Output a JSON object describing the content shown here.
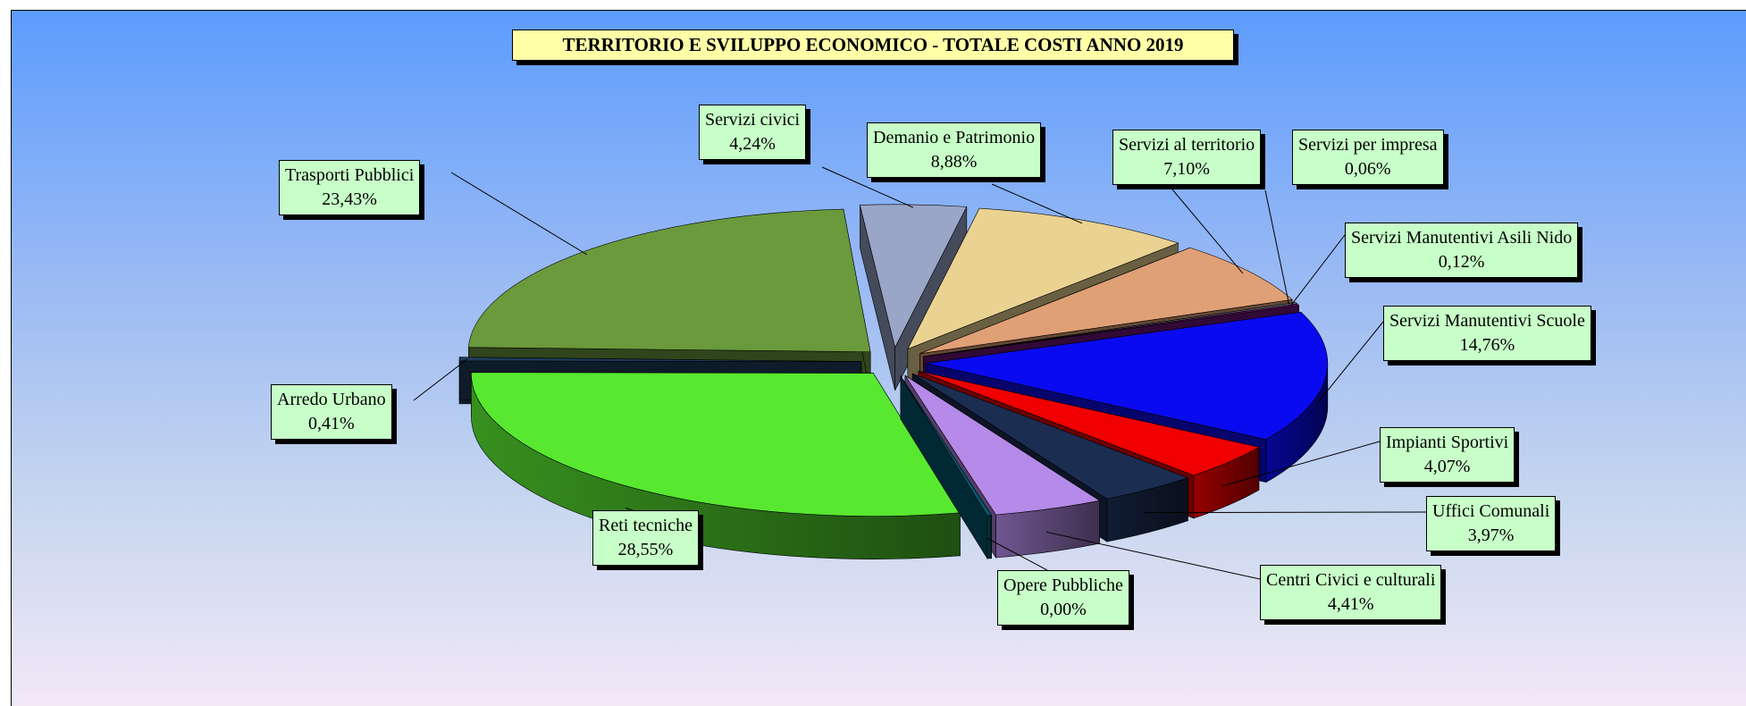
{
  "chart_data": {
    "type": "pie",
    "title": "TERRITORIO  E  SVILUPPO  ECONOMICO  -  TOTALE  COSTI  ANNO  2019",
    "slices": [
      {
        "label": "Servizi civici",
        "value": 4.24,
        "display": "4,24%",
        "color": "#9aa6c8"
      },
      {
        "label": "Demanio e Patrimonio",
        "value": 8.88,
        "display": "8,88%",
        "color": "#ead292"
      },
      {
        "label": "Servizi al territorio",
        "value": 7.1,
        "display": "7,10%",
        "color": "#e0a076"
      },
      {
        "label": "Servizi per impresa",
        "value": 0.06,
        "display": "0,06%",
        "color": "#6a6a7a"
      },
      {
        "label": "Servizi Manutentivi Asili Nido",
        "value": 0.12,
        "display": "0,12%",
        "color": "#6d1477"
      },
      {
        "label": "Servizi Manutentivi Scuole",
        "value": 14.76,
        "display": "14,76%",
        "color": "#0a0af0"
      },
      {
        "label": "Impianti Sportivi",
        "value": 4.07,
        "display": "4,07%",
        "color": "#f00000"
      },
      {
        "label": "Uffici Comunali",
        "value": 3.97,
        "display": "3,97%",
        "color": "#1c2d52"
      },
      {
        "label": "Centri Civici  e culturali",
        "value": 4.41,
        "display": "4,41%",
        "color": "#b58ae8"
      },
      {
        "label": "Opere Pubbliche",
        "value": 0.0,
        "display": "0,00%",
        "color": "#005a72"
      },
      {
        "label": "Reti tecniche",
        "value": 28.55,
        "display": "28,55%",
        "color": "#58e830"
      },
      {
        "label": "Arredo Urbano",
        "value": 0.41,
        "display": "0,41%",
        "color": "#203c5c"
      },
      {
        "label": "Trasporti Pubblici",
        "value": 23.43,
        "display": "23,43%",
        "color": "#6a9a3c"
      }
    ]
  }
}
